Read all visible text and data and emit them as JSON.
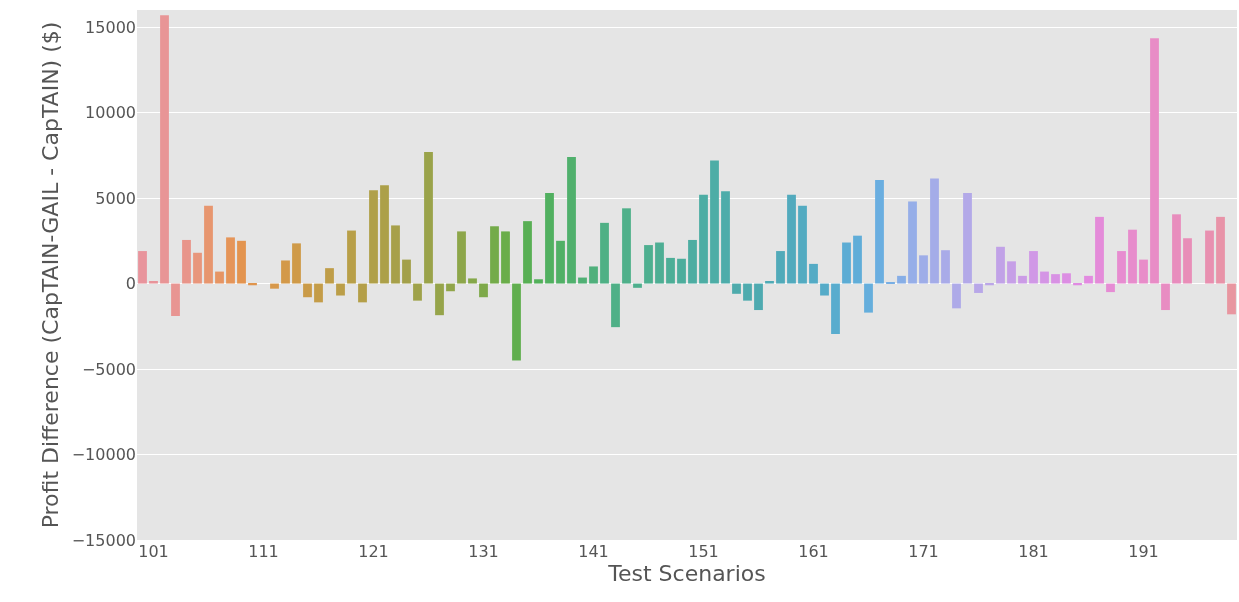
{
  "chart_data": {
    "type": "bar",
    "xlabel": "Test Scenarios",
    "ylabel": "Profit Difference (CapTAIN-GAIL - CapTAIN) ($)",
    "categories": [
      null,
      "101",
      null,
      null,
      null,
      null,
      null,
      null,
      null,
      null,
      null,
      "111",
      null,
      null,
      null,
      null,
      null,
      null,
      null,
      null,
      null,
      "121",
      null,
      null,
      null,
      null,
      null,
      null,
      null,
      null,
      null,
      "131",
      null,
      null,
      null,
      null,
      null,
      null,
      null,
      null,
      null,
      "141",
      null,
      null,
      null,
      null,
      null,
      null,
      null,
      null,
      null,
      "151",
      null,
      null,
      null,
      null,
      null,
      null,
      null,
      null,
      null,
      "161",
      null,
      null,
      null,
      null,
      null,
      null,
      null,
      null,
      null,
      "171",
      null,
      null,
      null,
      null,
      null,
      null,
      null,
      null,
      null,
      "181",
      null,
      null,
      null,
      null,
      null,
      null,
      null,
      null,
      null,
      "191",
      null,
      null,
      null,
      null,
      null,
      null,
      null,
      null
    ],
    "values": [
      1900,
      150,
      15700,
      -1900,
      2550,
      1800,
      4550,
      700,
      2700,
      2500,
      -100,
      0,
      -300,
      1350,
      2350,
      -800,
      -1100,
      900,
      -700,
      3100,
      -1100,
      5450,
      5750,
      3400,
      1400,
      -1000,
      7700,
      -1850,
      -450,
      3050,
      300,
      -800,
      3350,
      3050,
      -4500,
      3650,
      250,
      5300,
      2500,
      7400,
      350,
      1000,
      3550,
      -2550,
      4400,
      -250,
      2250,
      2400,
      1500,
      1450,
      2550,
      5200,
      7200,
      5400,
      -600,
      -1000,
      -1550,
      150,
      1900,
      5200,
      4550,
      1150,
      -700,
      -2950,
      2400,
      2800,
      -1700,
      6050,
      50,
      450,
      4800,
      1650,
      6150,
      1950,
      -1450,
      5300,
      -550,
      -100,
      2150,
      1300,
      450,
      1900,
      700,
      550,
      600,
      -100,
      450,
      3900,
      -500,
      1900,
      3150,
      1400,
      14350,
      -1550,
      4050,
      2650,
      0,
      3100,
      3900,
      -1800
    ],
    "colors": [
      "#e8949c",
      "#e8949a",
      "#e89596",
      "#e89592",
      "#e8958a",
      "#e8967c",
      "#e7966f",
      "#e69564",
      "#e59559",
      "#e3944f",
      "#e0954d",
      "#dc964b",
      "#d7984a",
      "#d39949",
      "#cf9a48",
      "#ca9b48",
      "#c49c48",
      "#bf9d48",
      "#bb9e48",
      "#b89f48",
      "#b49f48",
      "#b0a049",
      "#aca049",
      "#a7a04a",
      "#a3a04a",
      "#9fa24a",
      "#9aa34a",
      "#96a44a",
      "#91a54a",
      "#8da64a",
      "#85a84a",
      "#7ea94a",
      "#74ab4a",
      "#6aad4a",
      "#60ae4e",
      "#58af54",
      "#52b05a",
      "#51b060",
      "#51b066",
      "#50b06d",
      "#50b074",
      "#50b07c",
      "#4fb085",
      "#4fb087",
      "#4fb08a",
      "#4eaf8d",
      "#4eaf90",
      "#4eae94",
      "#4dae97",
      "#4dad9c",
      "#4dada2",
      "#4dada4",
      "#4dada6",
      "#4dacaa",
      "#4eabac",
      "#4eabae",
      "#4eaab0",
      "#4faab5",
      "#51aab9",
      "#52aabd",
      "#53abc1",
      "#54abc5",
      "#55abc8",
      "#58acce",
      "#5cacd4",
      "#60add8",
      "#65aedc",
      "#6aaee0",
      "#77aee4",
      "#87aee6",
      "#96aee8",
      "#9eade8",
      "#a4ace8",
      "#a9abe8",
      "#aeaae8",
      "#b3a9e8",
      "#b8a7e8",
      "#bca6e8",
      "#c1a2e7",
      "#c69fe7",
      "#cb9be6",
      "#d098e6",
      "#d495e5",
      "#d892e4",
      "#dc8ee3",
      "#e08be2",
      "#e28be0",
      "#e48bd9",
      "#e68cd4",
      "#e78cd0",
      "#e78ccc",
      "#e88cc9",
      "#e88cc6",
      "#e88cc2",
      "#e88dbd",
      "#e88eb8",
      "#e88fb4",
      "#e890b0",
      "#e893a8",
      "#e896a0"
    ],
    "ylim": [
      -15000,
      16000
    ],
    "yticks": [
      {
        "value": -15000,
        "label": "−15000"
      },
      {
        "value": -10000,
        "label": "−10000"
      },
      {
        "value": -5000,
        "label": "−5000"
      },
      0,
      5000,
      10000,
      15000
    ],
    "grid": "y"
  }
}
